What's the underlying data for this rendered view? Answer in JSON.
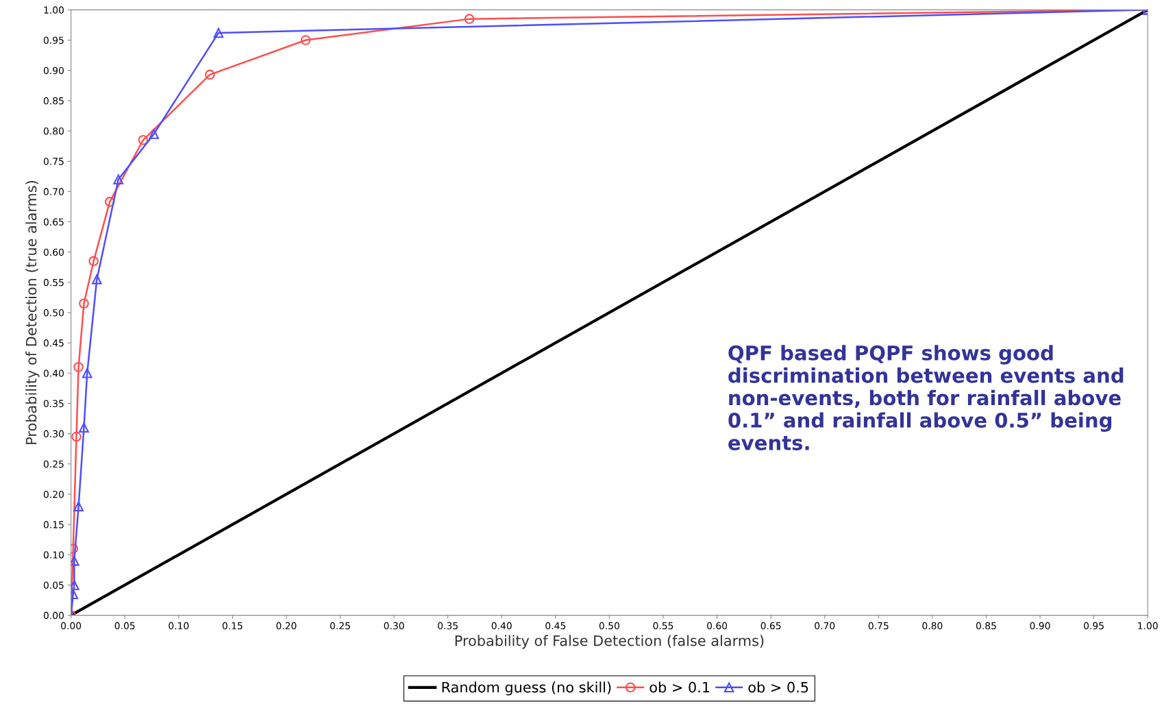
{
  "chart_data": {
    "type": "line",
    "xlabel": "Probability of False Detection (false alarms)",
    "ylabel": "Probability of Detection (true alarms)",
    "xlim": [
      0,
      1
    ],
    "ylim": [
      0,
      1
    ],
    "xticks": [
      {
        "value": 0,
        "label": "0.00"
      },
      {
        "value": 0.05,
        "label": "0.05"
      },
      {
        "value": 0.1,
        "label": "0.10"
      },
      {
        "value": 0.15,
        "label": "0.15"
      },
      {
        "value": 0.2,
        "label": "0.20"
      },
      {
        "value": 0.25,
        "label": "0.25"
      },
      {
        "value": 0.3,
        "label": "0.30"
      },
      {
        "value": 0.35,
        "label": "0.35"
      },
      {
        "value": 0.4,
        "label": "0.40"
      },
      {
        "value": 0.45,
        "label": "0.45"
      },
      {
        "value": 0.5,
        "label": "0.50"
      },
      {
        "value": 0.55,
        "label": "0.55"
      },
      {
        "value": 0.6,
        "label": "0.60"
      },
      {
        "value": 0.65,
        "label": "0.65"
      },
      {
        "value": 0.7,
        "label": "0.70"
      },
      {
        "value": 0.75,
        "label": "0.75"
      },
      {
        "value": 0.8,
        "label": "0.80"
      },
      {
        "value": 0.85,
        "label": "0.85"
      },
      {
        "value": 0.9,
        "label": "0.90"
      },
      {
        "value": 0.95,
        "label": "0.95"
      },
      {
        "value": 1,
        "label": "1.00"
      }
    ],
    "yticks": [
      {
        "value": 0,
        "label": "0.00"
      },
      {
        "value": 0.05,
        "label": "0.05"
      },
      {
        "value": 0.1,
        "label": "0.10"
      },
      {
        "value": 0.15,
        "label": "0.15"
      },
      {
        "value": 0.2,
        "label": "0.20"
      },
      {
        "value": 0.25,
        "label": "0.25"
      },
      {
        "value": 0.3,
        "label": "0.30"
      },
      {
        "value": 0.35,
        "label": "0.35"
      },
      {
        "value": 0.4,
        "label": "0.40"
      },
      {
        "value": 0.45,
        "label": "0.45"
      },
      {
        "value": 0.5,
        "label": "0.50"
      },
      {
        "value": 0.55,
        "label": "0.55"
      },
      {
        "value": 0.6,
        "label": "0.60"
      },
      {
        "value": 0.65,
        "label": "0.65"
      },
      {
        "value": 0.7,
        "label": "0.70"
      },
      {
        "value": 0.75,
        "label": "0.75"
      },
      {
        "value": 0.8,
        "label": "0.80"
      },
      {
        "value": 0.85,
        "label": "0.85"
      },
      {
        "value": 0.9,
        "label": "0.90"
      },
      {
        "value": 0.95,
        "label": "0.95"
      },
      {
        "value": 1,
        "label": "1.00"
      }
    ],
    "grid": false,
    "legend": "bottom",
    "series": [
      {
        "name": "Random guess (no skill)",
        "color": "#000000",
        "marker": "none",
        "x": [
          0,
          1
        ],
        "values": [
          0,
          1
        ]
      },
      {
        "name": "ob > 0.1",
        "color": "#ff4d4d",
        "marker": "circle",
        "x": [
          0,
          0.002,
          0.005,
          0.007,
          0.012,
          0.021,
          0.036,
          0.067,
          0.129,
          0.218,
          0.37,
          1
        ],
        "values": [
          0,
          0.11,
          0.295,
          0.41,
          0.515,
          0.585,
          0.683,
          0.785,
          0.893,
          0.95,
          0.985,
          1
        ]
      },
      {
        "name": "ob > 0.5",
        "color": "#4d4dff",
        "marker": "triangle",
        "x": [
          0,
          0.002,
          0.003,
          0.003,
          0.007,
          0.012,
          0.015,
          0.024,
          0.044,
          0.077,
          0.137,
          1
        ],
        "values": [
          0,
          0.035,
          0.05,
          0.09,
          0.18,
          0.31,
          0.4,
          0.555,
          0.72,
          0.795,
          0.962,
          1
        ]
      }
    ],
    "annotations": [
      "QPF based PQPF shows good discrimination between events and non-events, both for rainfall above 0.1” and rainfall above 0.5” being events."
    ]
  }
}
